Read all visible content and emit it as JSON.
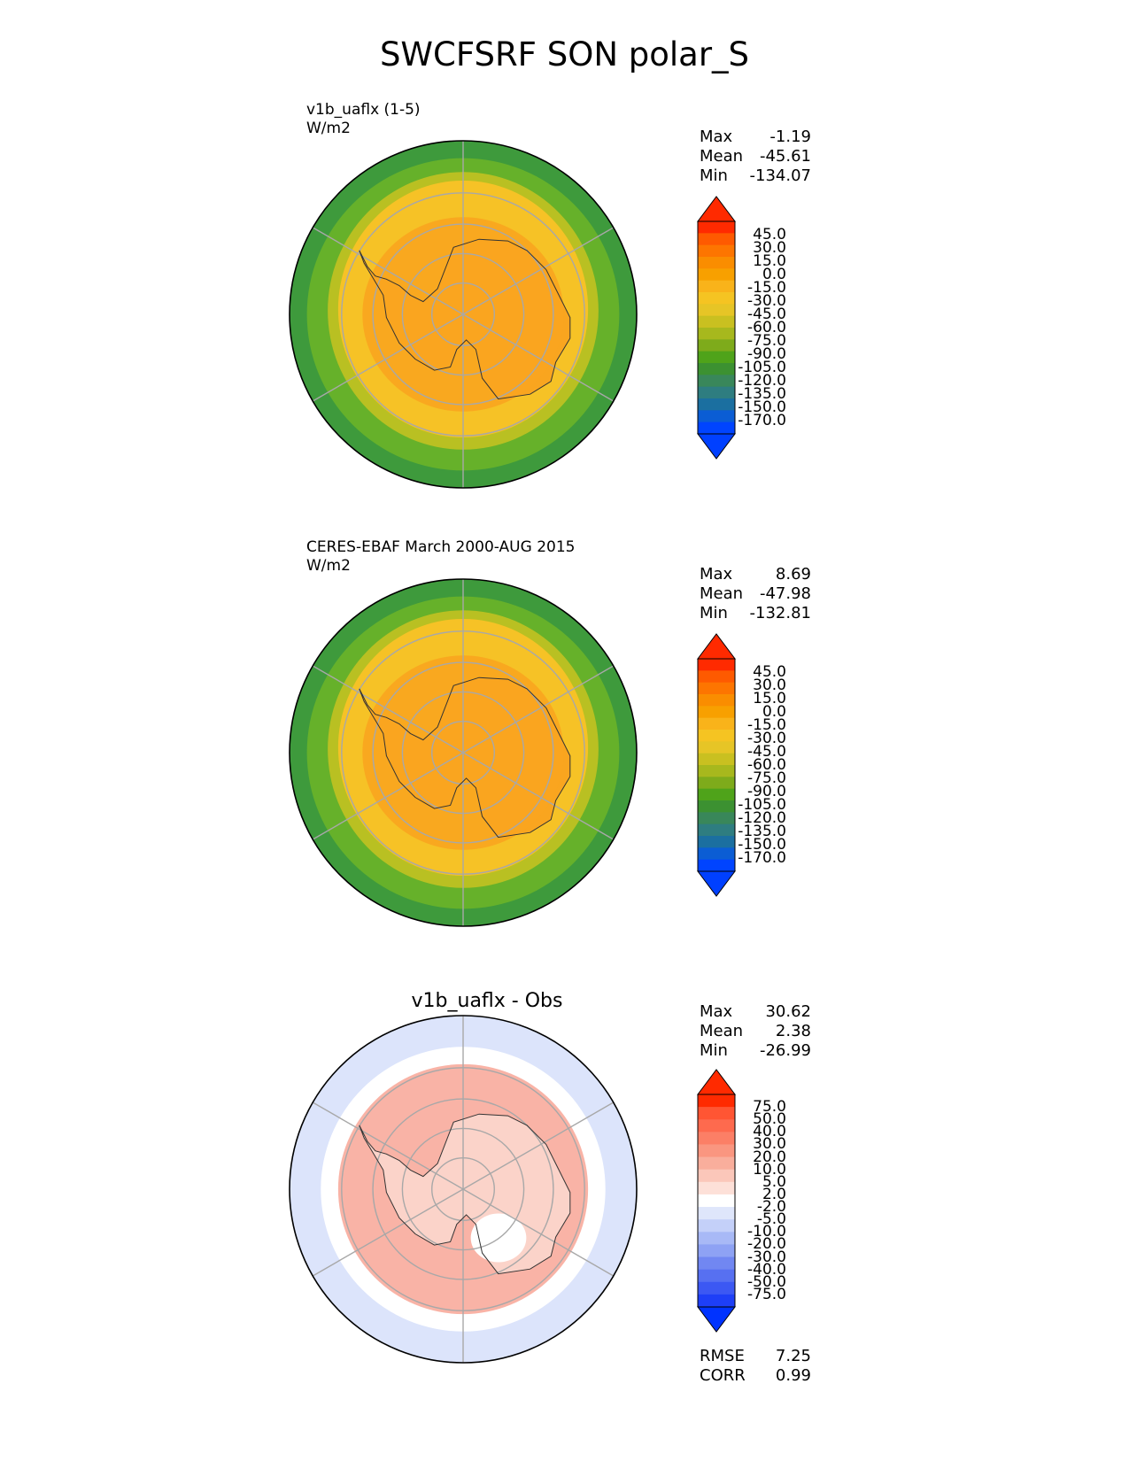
{
  "figure": {
    "title": "SWCFSRF SON polar_S"
  },
  "panels": [
    {
      "id": "test",
      "title_line1": "v1b_uaflx (1-5)",
      "title_line2": "W/m2",
      "stats": [
        {
          "label": "Max",
          "value": "-1.19"
        },
        {
          "label": "Mean",
          "value": "-45.61"
        },
        {
          "label": "Min",
          "value": "-134.07"
        }
      ],
      "colorbar": {
        "labels": [
          "45.0",
          "30.0",
          "15.0",
          "0.0",
          "-15.0",
          "-30.0",
          "-45.0",
          "-60.0",
          "-75.0",
          "-90.0",
          "-105.0",
          "-120.0",
          "-135.0",
          "-150.0",
          "-170.0"
        ],
        "colors": [
          "#ff2a00",
          "#fe5a00",
          "#fd7500",
          "#fa8d00",
          "#f8a000",
          "#f9b31a",
          "#f5c422",
          "#e6c526",
          "#c9c020",
          "#a7b81d",
          "#7eab1b",
          "#4fa31a",
          "#3c9131",
          "#39875a",
          "#2e7d80",
          "#1b6fa0",
          "#0b5dd4",
          "#0044ff"
        ],
        "under_color": "#0040ff",
        "over_color": "#ff2a00"
      },
      "map_colors": {
        "ocean_outer": "#3e9a3c",
        "ring_green": "#66b12a",
        "ring_lime": "#b9c022",
        "ring_yellow": "#f6c226",
        "inner_orange": "#f9a51f"
      }
    },
    {
      "id": "ref",
      "title_line1": "CERES-EBAF March 2000-AUG 2015",
      "title_line2": "W/m2",
      "stats": [
        {
          "label": "Max",
          "value": "8.69"
        },
        {
          "label": "Mean",
          "value": "-47.98"
        },
        {
          "label": "Min",
          "value": "-132.81"
        }
      ],
      "colorbar": {
        "labels": [
          "45.0",
          "30.0",
          "15.0",
          "0.0",
          "-15.0",
          "-30.0",
          "-45.0",
          "-60.0",
          "-75.0",
          "-90.0",
          "-105.0",
          "-120.0",
          "-135.0",
          "-150.0",
          "-170.0"
        ],
        "colors": [
          "#ff2a00",
          "#fe5a00",
          "#fd7500",
          "#fa8d00",
          "#f8a000",
          "#f9b31a",
          "#f5c422",
          "#e6c526",
          "#c9c020",
          "#a7b81d",
          "#7eab1b",
          "#4fa31a",
          "#3c9131",
          "#39875a",
          "#2e7d80",
          "#1b6fa0",
          "#0b5dd4",
          "#0044ff"
        ],
        "under_color": "#0040ff",
        "over_color": "#ff2a00"
      },
      "map_colors": {
        "ocean_outer": "#3e9a3c",
        "ring_green": "#66b12a",
        "ring_lime": "#b9c022",
        "ring_yellow": "#f6c226",
        "inner_orange": "#f9a51f"
      }
    },
    {
      "id": "diff",
      "title": "v1b_uaflx - Obs",
      "stats": [
        {
          "label": "Max",
          "value": "30.62"
        },
        {
          "label": "Mean",
          "value": "2.38"
        },
        {
          "label": "Min",
          "value": "-26.99"
        }
      ],
      "metrics": [
        {
          "label": "RMSE",
          "value": "7.25"
        },
        {
          "label": "CORR",
          "value": "0.99"
        }
      ],
      "colorbar": {
        "labels": [
          "75.0",
          "50.0",
          "40.0",
          "30.0",
          "20.0",
          "10.0",
          "5.0",
          "2.0",
          "-2.0",
          "-5.0",
          "-10.0",
          "-20.0",
          "-30.0",
          "-40.0",
          "-50.0",
          "-75.0"
        ],
        "colors": [
          "#ff2a00",
          "#ff5533",
          "#fe6a4e",
          "#fc7f66",
          "#fa9680",
          "#f9ae9c",
          "#fbc7ba",
          "#fde0d8",
          "#ffffff",
          "#dfe6fb",
          "#c4d0f9",
          "#a8b9f6",
          "#8ea2f4",
          "#7187f2",
          "#5770f1",
          "#3c58f3",
          "#1e3ff7"
        ],
        "under_color": "#0033ff",
        "over_color": "#ff2a00"
      },
      "map_colors": {
        "outer_blue": "#dce4fb",
        "mid_pink": "#f9b3a6",
        "inner_light": "#fbd3c9",
        "white": "#ffffff"
      }
    }
  ]
}
